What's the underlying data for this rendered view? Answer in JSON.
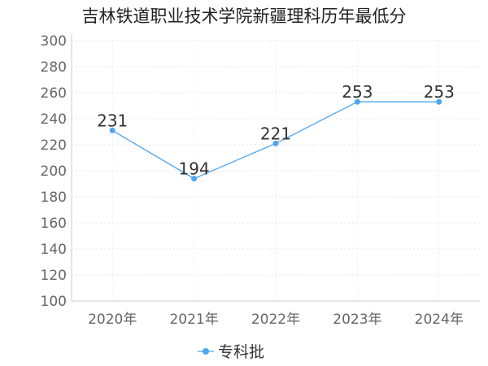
{
  "chart_data": {
    "type": "line",
    "title": "吉林铁道职业技术学院新疆理科历年最低分",
    "categories": [
      "2020年",
      "2021年",
      "2022年",
      "2023年",
      "2024年"
    ],
    "series": [
      {
        "name": "专科批",
        "values": [
          231,
          194,
          221,
          253,
          253
        ],
        "color": "#4da6f0"
      }
    ],
    "ylim": [
      100,
      300
    ],
    "yticks": [
      100,
      120,
      140,
      160,
      180,
      200,
      220,
      240,
      260,
      280,
      300
    ],
    "grid": true,
    "legend_position": "bottom-center",
    "xlabel": "",
    "ylabel": ""
  }
}
